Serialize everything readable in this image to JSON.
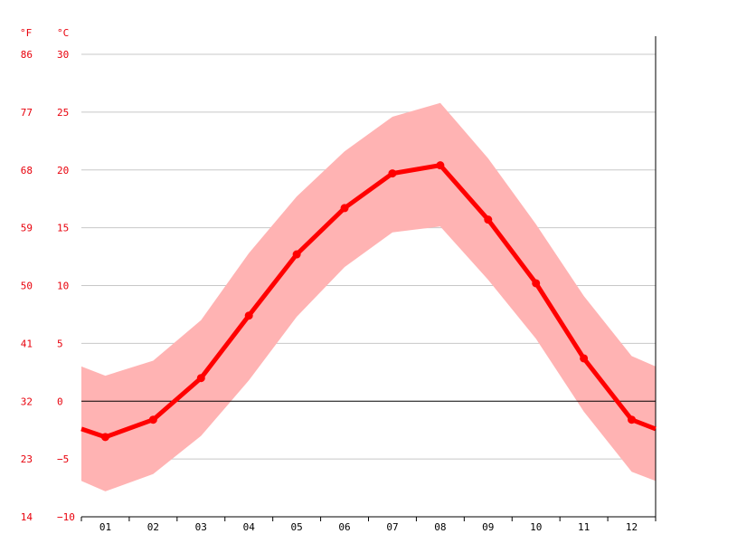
{
  "chart_data": {
    "type": "line",
    "title": "",
    "xlabel": "",
    "ylabel": "",
    "unit_f": "°F",
    "unit_c": "°C",
    "categories": [
      "01",
      "02",
      "03",
      "04",
      "05",
      "06",
      "07",
      "08",
      "09",
      "10",
      "11",
      "12"
    ],
    "series": [
      {
        "values": [
          -3.1,
          -1.6,
          2.0,
          7.4,
          12.7,
          16.7,
          19.7,
          20.4,
          15.7,
          10.2,
          3.7,
          -1.6
        ]
      }
    ],
    "band": {
      "upper": [
        2.2,
        3.5,
        7.0,
        12.8,
        17.7,
        21.6,
        24.6,
        25.8,
        21.0,
        15.3,
        9.1,
        3.9
      ],
      "lower": [
        -7.8,
        -6.3,
        -3.0,
        1.8,
        7.3,
        11.6,
        14.6,
        15.1,
        10.5,
        5.4,
        -0.9,
        -6.1
      ],
      "edge_upper": [
        3.0,
        3.0
      ],
      "edge_lower": [
        -6.9,
        -6.9
      ]
    },
    "edge_values": [
      -2.4,
      -2.4
    ],
    "ylim": [
      -10,
      30
    ],
    "c_ticks": [
      "30",
      "25",
      "20",
      "15",
      "10",
      "5",
      "0",
      "−5",
      "−10"
    ],
    "c_tick_values": [
      30,
      25,
      20,
      15,
      10,
      5,
      0,
      -5,
      -10
    ],
    "f_ticks": [
      "86",
      "77",
      "68",
      "59",
      "50",
      "41",
      "32",
      "23",
      "14"
    ],
    "grid": true,
    "colors": {
      "line": "#ff0000",
      "band": "#ffb3b3",
      "grid": "#c8c8c8",
      "axis": "#000000",
      "tick_text": "#e8000b"
    }
  }
}
